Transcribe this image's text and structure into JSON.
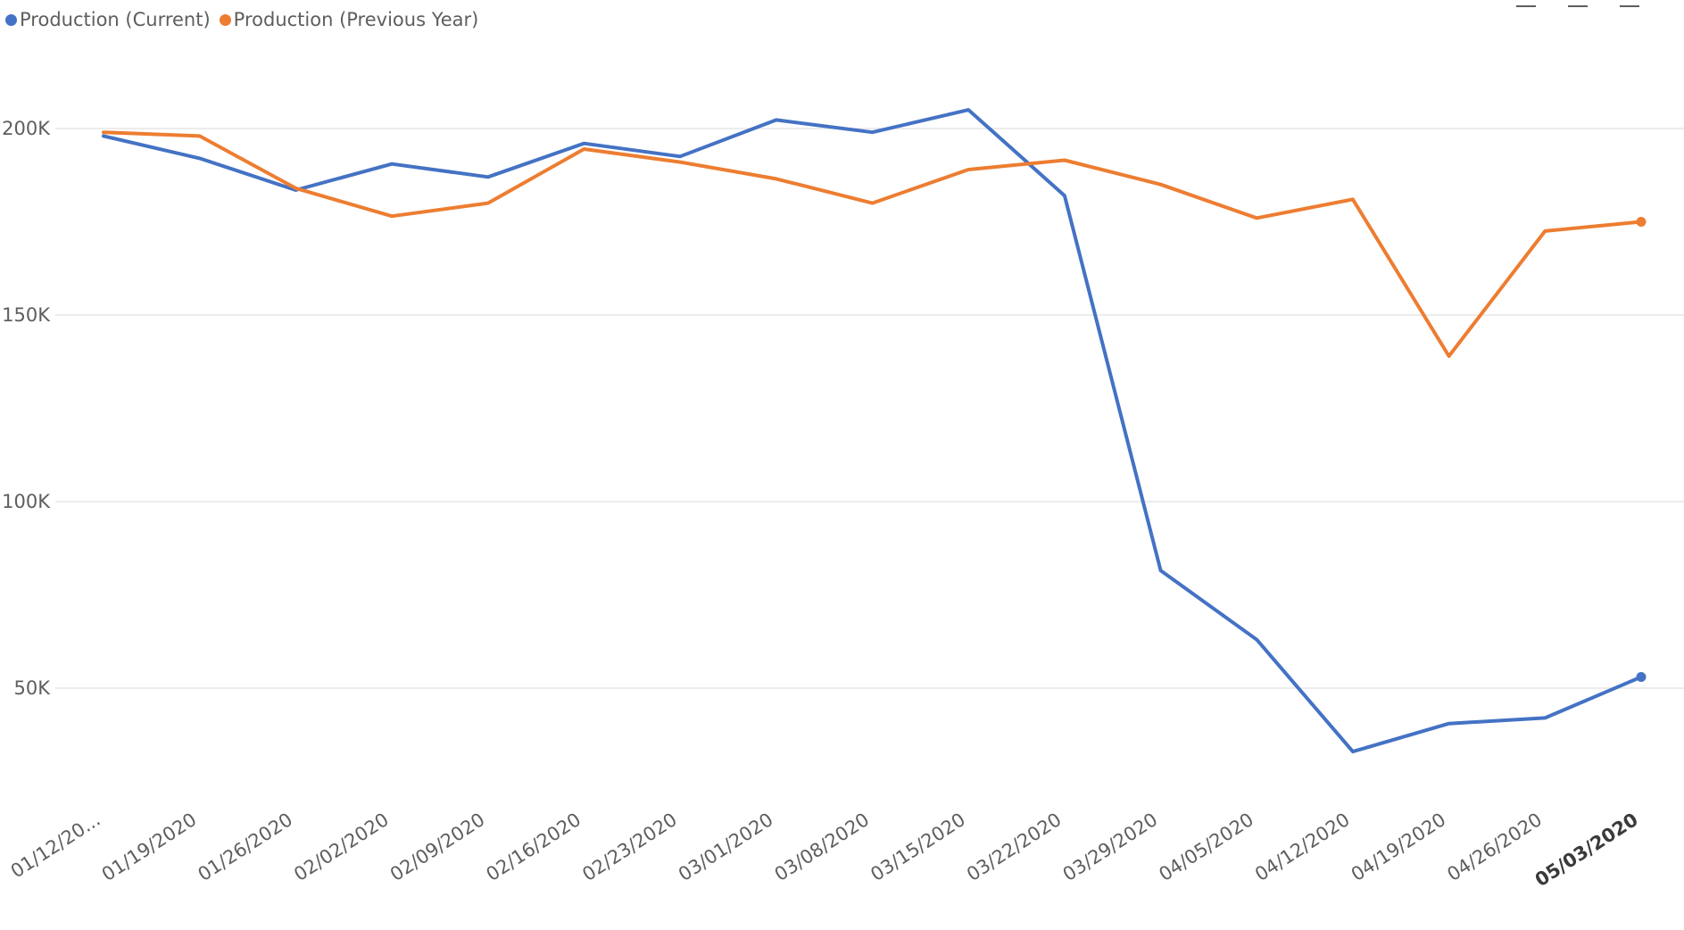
{
  "legend": {
    "series1_label": "Production (Current)",
    "series2_label": "Production (Previous Year)"
  },
  "colors": {
    "current": "#4472C4",
    "previous": "#ED7D31",
    "grid": "#e6e6e6",
    "axis_text": "#605e5c"
  },
  "icons": [
    "focus-mode-icon",
    "filter-icon",
    "more-options-icon"
  ],
  "chart_data": {
    "type": "line",
    "x": [
      "01/12/20...",
      "01/19/2020",
      "01/26/2020",
      "02/02/2020",
      "02/09/2020",
      "02/16/2020",
      "02/23/2020",
      "03/01/2020",
      "03/08/2020",
      "03/15/2020",
      "03/22/2020",
      "03/29/2020",
      "04/05/2020",
      "04/12/2020",
      "04/19/2020",
      "04/26/2020",
      "05/03/2020"
    ],
    "highlighted_x": "05/03/2020",
    "series": [
      {
        "name": "Production (Current)",
        "color": "#4472C4",
        "values": [
          198000,
          192000,
          183500,
          190500,
          187000,
          196000,
          192500,
          202300,
          199000,
          205000,
          182000,
          81500,
          63000,
          33000,
          40500,
          42000,
          53000
        ]
      },
      {
        "name": "Production (Previous Year)",
        "color": "#ED7D31",
        "values": [
          199000,
          198000,
          184000,
          176500,
          180000,
          194500,
          191000,
          186500,
          180000,
          189000,
          191500,
          185000,
          176000,
          181000,
          139000,
          172500,
          175000
        ]
      }
    ],
    "yticks": [
      "200K",
      "150K",
      "100K",
      "50K"
    ],
    "ytick_values": [
      200000,
      150000,
      100000,
      50000
    ],
    "ylim": [
      18000,
      225000
    ],
    "grid": true,
    "legend_position": "top-left",
    "xlabel": "",
    "ylabel": "",
    "title": ""
  }
}
